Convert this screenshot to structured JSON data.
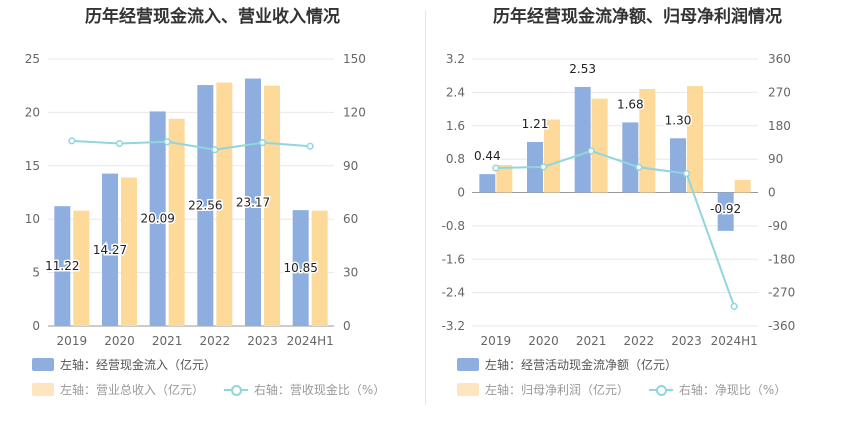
{
  "chart_data": [
    {
      "type": "bar",
      "title": "历年经营现金流入、营业收入情况",
      "categories": [
        "2019",
        "2020",
        "2021",
        "2022",
        "2023",
        "2024H1"
      ],
      "left_axis": {
        "ticks": [
          "0",
          "5",
          "10",
          "15",
          "20",
          "25"
        ],
        "ylim": [
          0,
          25
        ]
      },
      "right_axis": {
        "ticks": [
          "0",
          "30",
          "60",
          "90",
          "120",
          "150"
        ],
        "ylim": [
          0,
          150
        ]
      },
      "series": [
        {
          "name": "左轴：经营现金流入（亿元）",
          "axis": "left",
          "kind": "bar",
          "color": "#8eaee0",
          "values": [
            11.22,
            14.27,
            20.09,
            22.56,
            23.17,
            10.85
          ],
          "labels": [
            "11.22",
            "14.27",
            "20.09",
            "22.56",
            "23.17",
            "10.85"
          ]
        },
        {
          "name": "左轴：营业总收入（亿元）",
          "axis": "left",
          "kind": "bar",
          "color": "#fdd99a",
          "values": [
            10.8,
            13.9,
            19.4,
            22.8,
            22.5,
            10.8
          ]
        },
        {
          "name": "右轴：营收现金比（%）",
          "axis": "right",
          "kind": "line",
          "color": "#91d5dd",
          "values": [
            104,
            102.5,
            103.5,
            99,
            103,
            101
          ]
        }
      ],
      "legend": [
        "左轴：经营现金流入（亿元）",
        "左轴：营业总收入（亿元）",
        "右轴：营收现金比（%）"
      ]
    },
    {
      "type": "bar",
      "title": "历年经营现金流净额、归母净利润情况",
      "categories": [
        "2019",
        "2020",
        "2021",
        "2022",
        "2023",
        "2024H1"
      ],
      "left_axis": {
        "ticks": [
          "-3.2",
          "-2.4",
          "-1.6",
          "-0.8",
          "0",
          "0.8",
          "1.6",
          "2.4",
          "3.2"
        ],
        "ylim": [
          -3.2,
          3.2
        ]
      },
      "right_axis": {
        "ticks": [
          "-360",
          "-270",
          "-180",
          "-90",
          "0",
          "90",
          "180",
          "270",
          "360"
        ],
        "ylim": [
          -360,
          360
        ]
      },
      "series": [
        {
          "name": "左轴：经营活动现金流净额（亿元）",
          "axis": "left",
          "kind": "bar",
          "color": "#8eaee0",
          "values": [
            0.44,
            1.21,
            2.53,
            1.68,
            1.3,
            -0.92
          ],
          "labels": [
            "0.44",
            "1.21",
            "2.53",
            "1.68",
            "1.30",
            "-0.92"
          ]
        },
        {
          "name": "左轴：归母净利润（亿元）",
          "axis": "left",
          "kind": "bar",
          "color": "#fdd99a",
          "values": [
            0.66,
            1.75,
            2.25,
            2.48,
            2.55,
            0.3
          ]
        },
        {
          "name": "右轴：净现比（%）",
          "axis": "right",
          "kind": "line",
          "color": "#91d5dd",
          "values": [
            66,
            69,
            112,
            68,
            51,
            -307
          ]
        }
      ],
      "legend": [
        "左轴：经营活动现金流净额（亿元）",
        "左轴：归母净利润（亿元）",
        "右轴：净现比（%）"
      ]
    }
  ]
}
